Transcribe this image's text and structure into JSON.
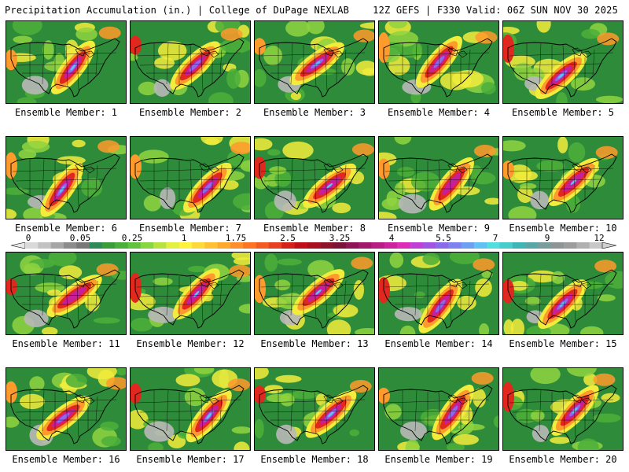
{
  "header": {
    "title": "Precipitation Accumulation (in.) | College of DuPage NEXLAB",
    "run_info": "12Z GEFS | F330 Valid: 06Z SUN NOV 30 2025"
  },
  "colorbar": {
    "labels": [
      "0",
      "0.05",
      "0.25",
      "1",
      "1.75",
      "2.5",
      "3.25",
      "4",
      "5.5",
      "7",
      "9",
      "12"
    ],
    "colors": [
      "#d9d9d9",
      "#c2c2c2",
      "#a6a6a6",
      "#8c8c8c",
      "#787878",
      "#2e8b57",
      "#3a9d3a",
      "#49b03c",
      "#63c23d",
      "#87d53f",
      "#b7e23f",
      "#e3f03f",
      "#fff23d",
      "#ffd93a",
      "#ffc033",
      "#ffa82e",
      "#ff8f2a",
      "#ff7325",
      "#f25b21",
      "#e6401e",
      "#d41f1b",
      "#c00f19",
      "#a8101f",
      "#8e1228",
      "#7a1237",
      "#8e1453",
      "#a3186b",
      "#b81d84",
      "#cc229d",
      "#dd2cb8",
      "#c03fd6",
      "#a055e0",
      "#8a6ae8",
      "#7d82ee",
      "#6ea0f2",
      "#5fc2f2",
      "#52dede",
      "#47cccc",
      "#3fb6b6",
      "#5aa6a6",
      "#7a9c9c",
      "#8f9494",
      "#9c9c9c",
      "#b0b0b0",
      "#c8c8c8"
    ]
  },
  "members": [
    {
      "label": "Ensemble Member: 1"
    },
    {
      "label": "Ensemble Member: 2"
    },
    {
      "label": "Ensemble Member: 3"
    },
    {
      "label": "Ensemble Member: 4"
    },
    {
      "label": "Ensemble Member: 5"
    },
    {
      "label": "Ensemble Member: 6"
    },
    {
      "label": "Ensemble Member: 7"
    },
    {
      "label": "Ensemble Member: 8"
    },
    {
      "label": "Ensemble Member: 9"
    },
    {
      "label": "Ensemble Member: 10"
    },
    {
      "label": "Ensemble Member: 11"
    },
    {
      "label": "Ensemble Member: 12"
    },
    {
      "label": "Ensemble Member: 13"
    },
    {
      "label": "Ensemble Member: 14"
    },
    {
      "label": "Ensemble Member: 15"
    },
    {
      "label": "Ensemble Member: 16"
    },
    {
      "label": "Ensemble Member: 17"
    },
    {
      "label": "Ensemble Member: 18"
    },
    {
      "label": "Ensemble Member: 19"
    },
    {
      "label": "Ensemble Member: 20"
    }
  ],
  "colors": {
    "background_green": "#2e8b3a",
    "mid_green": "#4caf3a",
    "light_green": "#8fd43f",
    "yellow": "#f2ec3c",
    "orange": "#ff9a2c",
    "red": "#e0281e",
    "magenta": "#c81e9a",
    "purple": "#8a6ae8",
    "blue": "#5fc2f2",
    "dry_gray": "#b8b8b8"
  }
}
